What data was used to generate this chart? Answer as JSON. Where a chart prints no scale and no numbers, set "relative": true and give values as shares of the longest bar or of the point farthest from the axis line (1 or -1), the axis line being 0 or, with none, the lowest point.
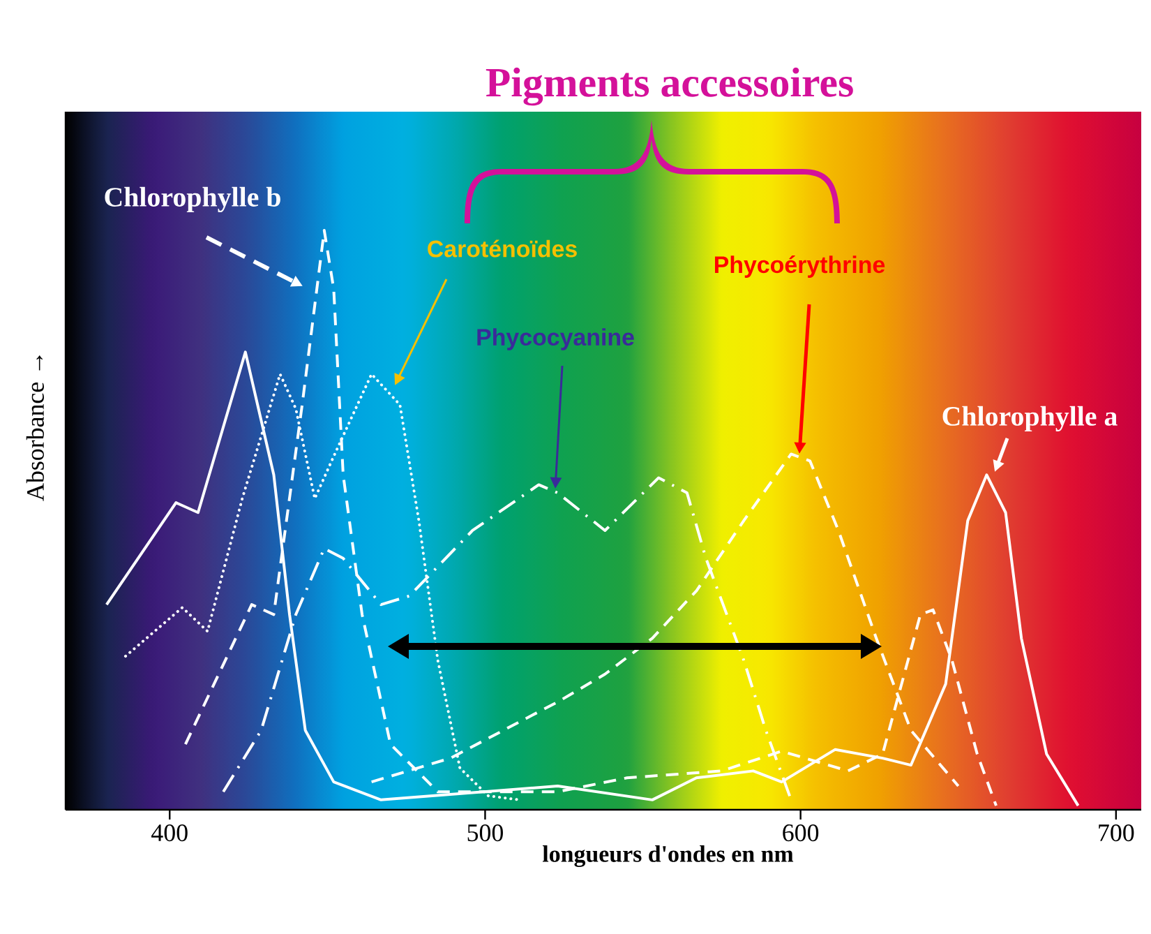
{
  "chart_data": {
    "type": "line",
    "relative": true,
    "xlabel": "longueurs d'ondes en nm",
    "ylabel": "Absorbance →",
    "xlim": [
      367,
      708
    ],
    "xticks": [
      400,
      500,
      600,
      700
    ],
    "grid": false,
    "marker": "none",
    "annotations": [
      "Pigments accessoires"
    ],
    "series": [
      {
        "name": "Chlorophylle b",
        "color": "#ffffff",
        "line_style": "dashed",
        "x": [
          405,
          426,
          433,
          442,
          449,
          452,
          455,
          461,
          470,
          485,
          523,
          545,
          575,
          594,
          615,
          626,
          638,
          642,
          648,
          656,
          662
        ],
        "values": [
          0.113,
          0.354,
          0.337,
          0.699,
          1.0,
          0.899,
          0.578,
          0.337,
          0.113,
          0.031,
          0.031,
          0.055,
          0.067,
          0.101,
          0.067,
          0.096,
          0.337,
          0.345,
          0.258,
          0.096,
          0.007
        ]
      },
      {
        "name": "Caroténoïdes",
        "color": "#ffffff",
        "line_style": "dotted",
        "x": [
          386,
          404,
          412,
          423,
          435,
          440,
          446,
          452,
          464,
          473,
          479,
          485,
          492,
          501,
          511
        ],
        "values": [
          0.265,
          0.349,
          0.308,
          0.537,
          0.752,
          0.692,
          0.537,
          0.61,
          0.752,
          0.699,
          0.499,
          0.258,
          0.072,
          0.024,
          0.017
        ]
      },
      {
        "name": "Phycocyanine",
        "color": "#ffffff",
        "line_style": "dashdot",
        "x": [
          417,
          429,
          440,
          449,
          455,
          467,
          476,
          496,
          517,
          523,
          538,
          555,
          564,
          570,
          582,
          589,
          597
        ],
        "values": [
          0.031,
          0.137,
          0.337,
          0.451,
          0.434,
          0.354,
          0.369,
          0.482,
          0.561,
          0.547,
          0.482,
          0.573,
          0.547,
          0.434,
          0.258,
          0.137,
          0.017
        ]
      },
      {
        "name": "Phycoérythrine",
        "color": "#ffffff",
        "line_style": "dashed",
        "x": [
          464,
          489,
          511,
          523,
          538,
          553,
          567,
          582,
          597,
          603,
          612,
          624,
          635,
          650
        ],
        "values": [
          0.048,
          0.089,
          0.152,
          0.186,
          0.234,
          0.296,
          0.378,
          0.499,
          0.614,
          0.602,
          0.482,
          0.296,
          0.137,
          0.041
        ]
      },
      {
        "name": "Chlorophylle a",
        "color": "#ffffff",
        "line_style": "solid",
        "x": [
          380,
          402,
          409,
          424,
          433,
          438,
          443,
          452,
          467,
          523,
          553,
          567,
          585,
          594,
          611,
          626,
          635,
          646,
          653,
          659,
          665,
          670,
          678,
          688
        ],
        "values": [
          0.354,
          0.53,
          0.513,
          0.79,
          0.578,
          0.337,
          0.137,
          0.048,
          0.017,
          0.041,
          0.017,
          0.055,
          0.067,
          0.048,
          0.104,
          0.089,
          0.077,
          0.217,
          0.499,
          0.578,
          0.513,
          0.296,
          0.096,
          0.007
        ]
      }
    ]
  }
}
